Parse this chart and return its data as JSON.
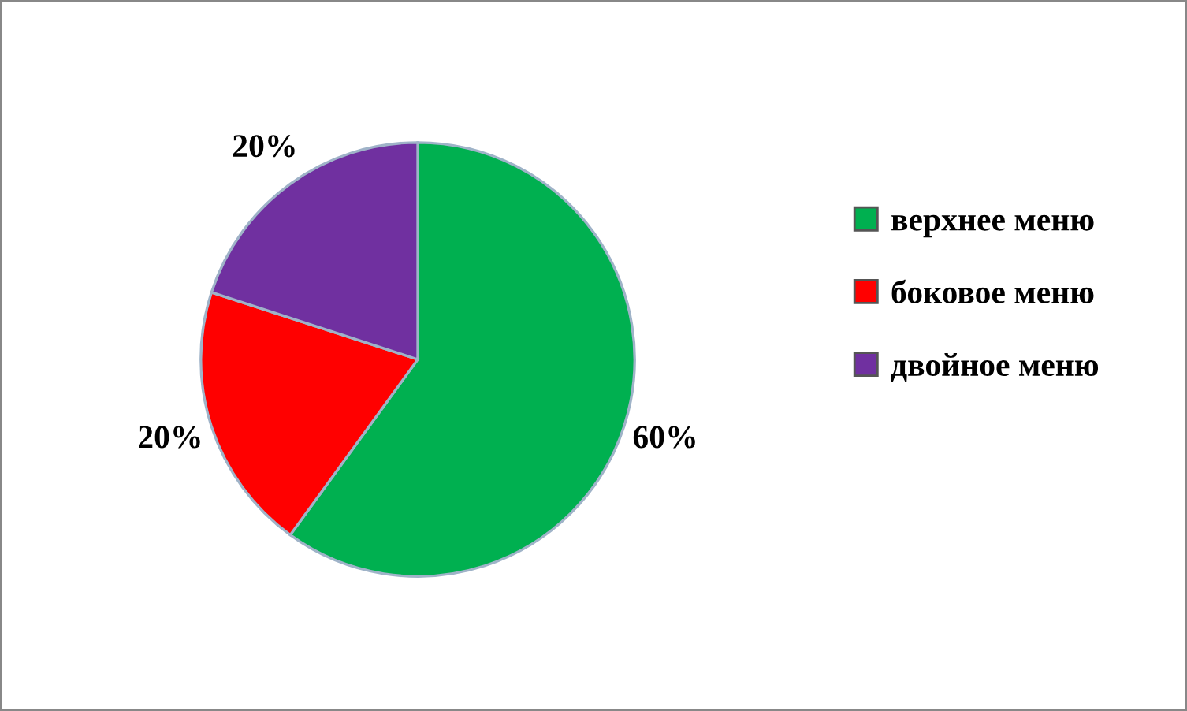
{
  "chart_data": {
    "type": "pie",
    "categories": [
      "верхнее меню",
      "боковое меню",
      "двойное меню"
    ],
    "values": [
      60,
      20,
      20
    ],
    "colors": [
      "#00b050",
      "#ff0000",
      "#7030a0"
    ],
    "value_labels": [
      "60%",
      "20%",
      "20%"
    ],
    "legend": "right"
  }
}
